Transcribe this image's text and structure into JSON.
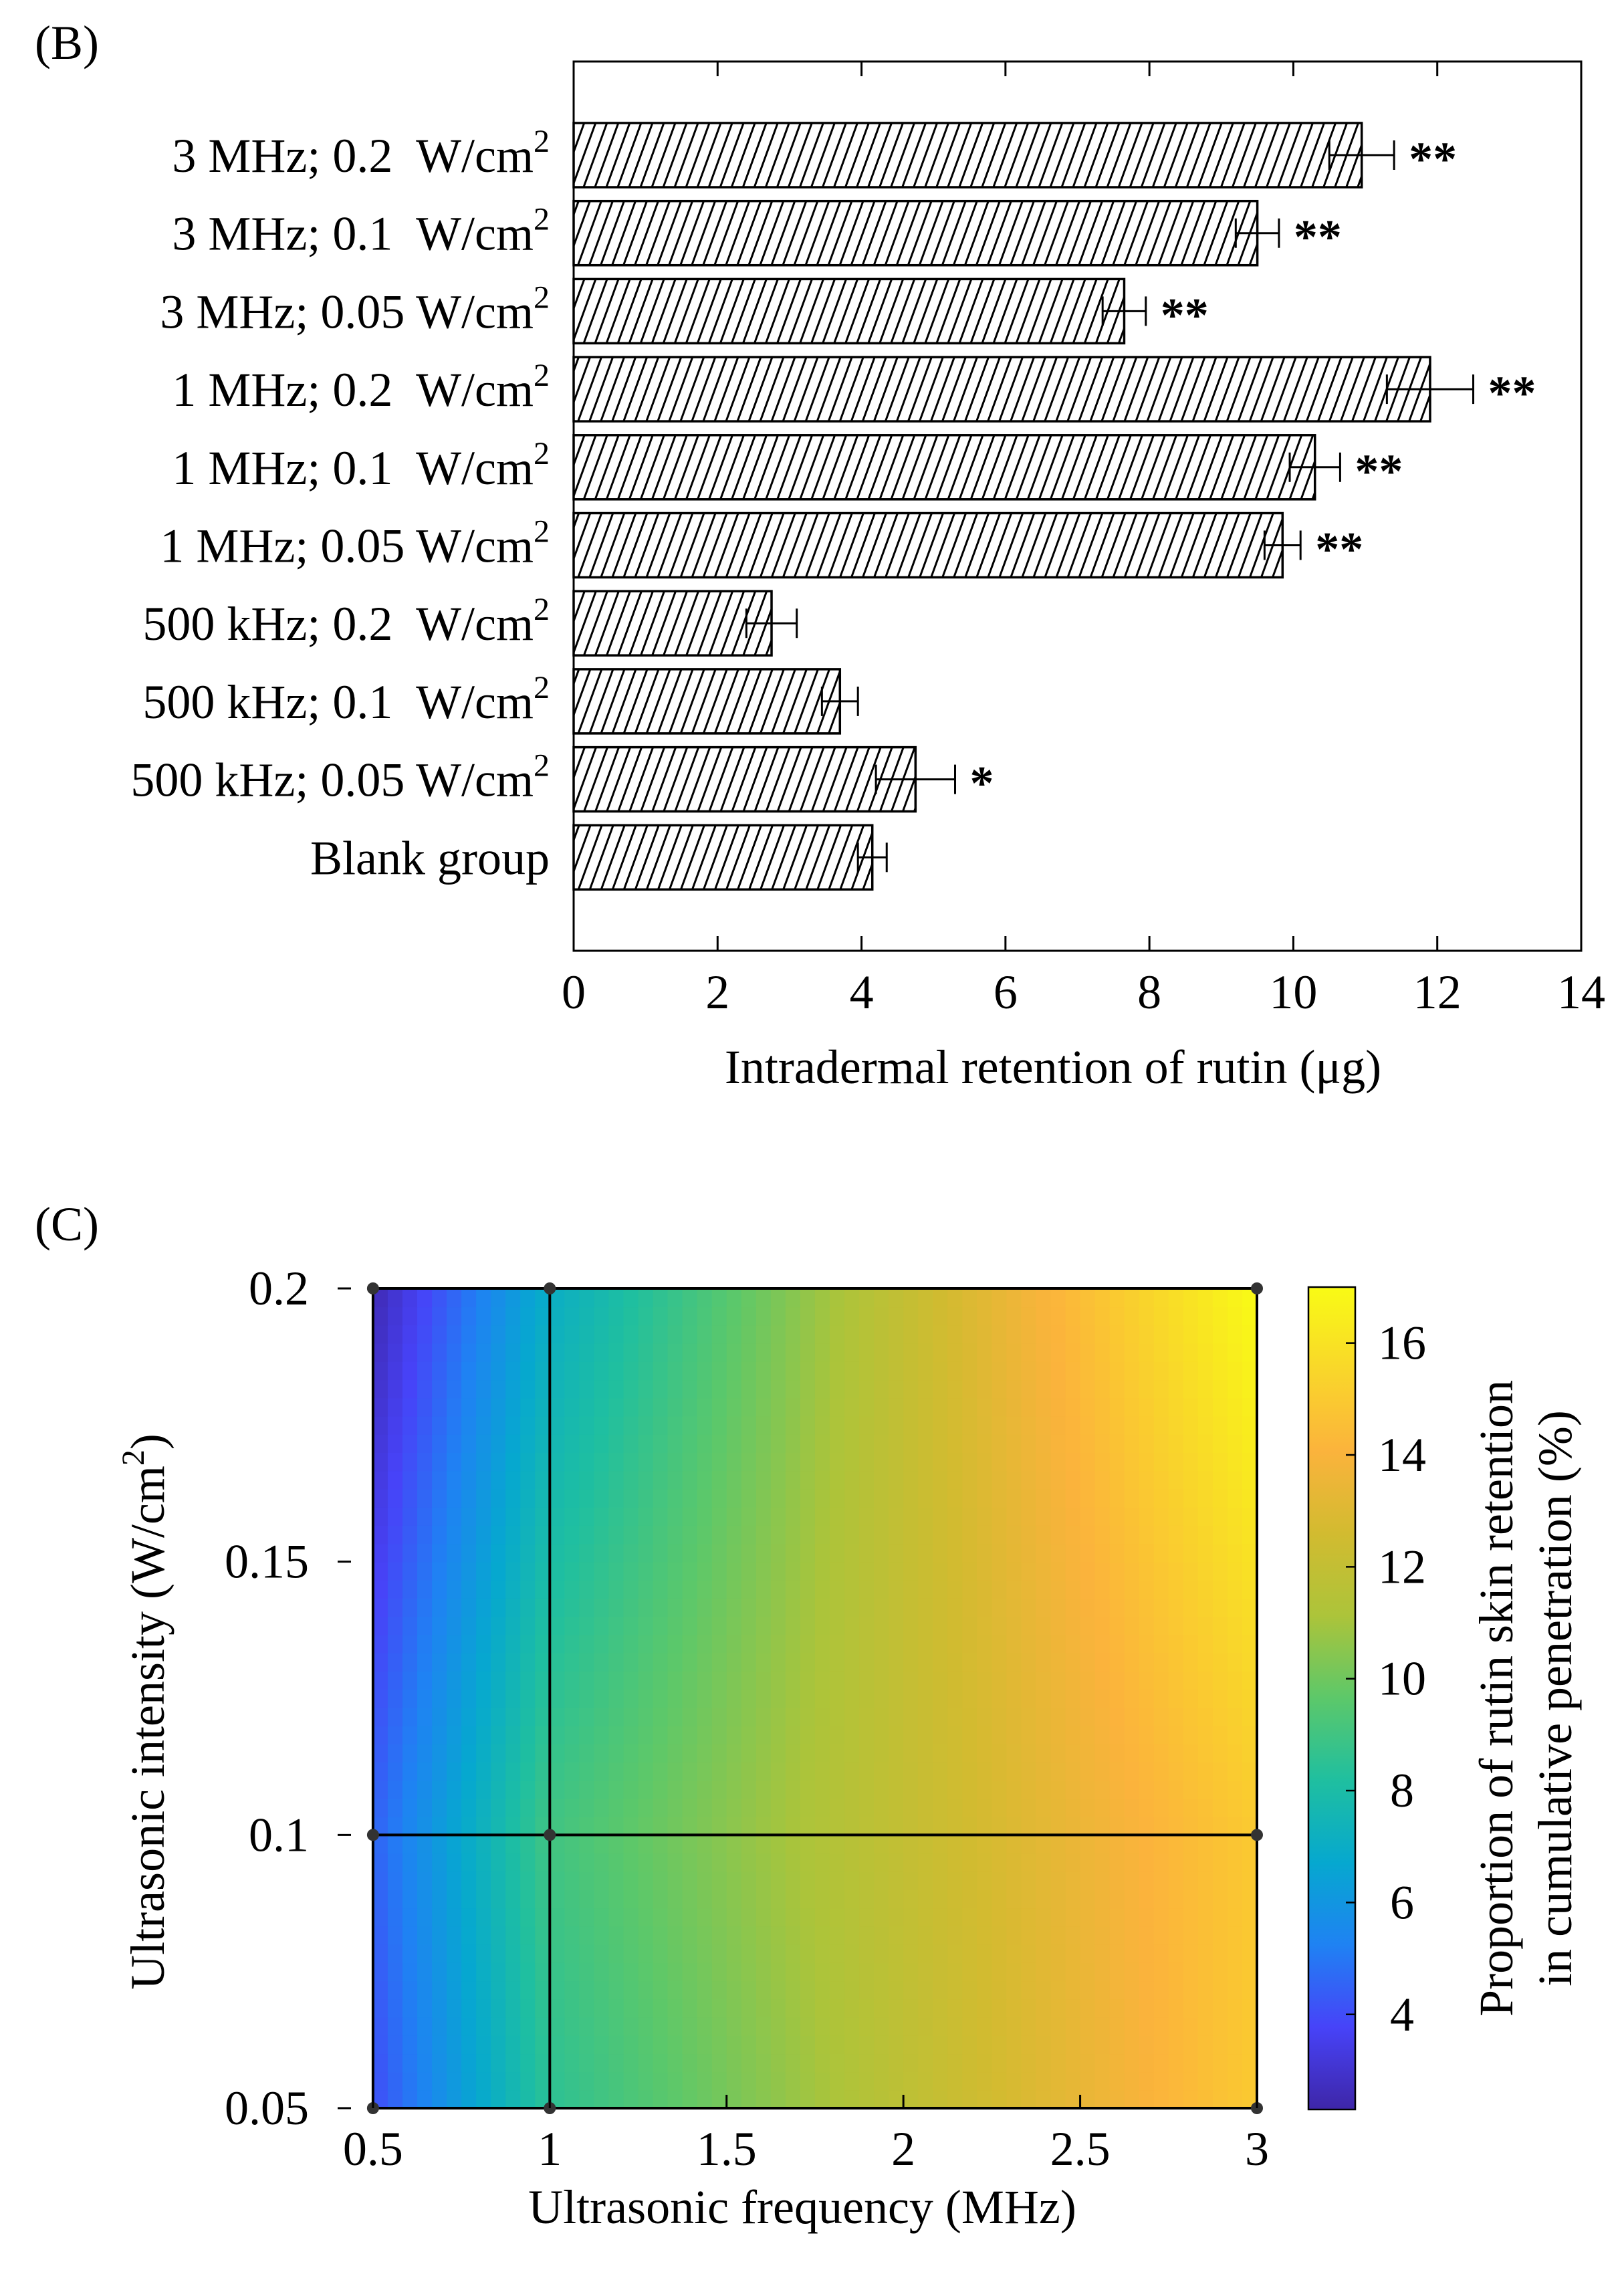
{
  "panel_b": {
    "label": "(B)",
    "chart_data": {
      "type": "bar",
      "orientation": "horizontal",
      "categories": [
        {
          "pre": "3 MHz; 0.2  W/cm",
          "sup": "2"
        },
        {
          "pre": "3 MHz; 0.1  W/cm",
          "sup": "2"
        },
        {
          "pre": "3 MHz; 0.05 W/cm",
          "sup": "2"
        },
        {
          "pre": "1 MHz; 0.2  W/cm",
          "sup": "2"
        },
        {
          "pre": "1 MHz; 0.1  W/cm",
          "sup": "2"
        },
        {
          "pre": "1 MHz; 0.05 W/cm",
          "sup": "2"
        },
        {
          "pre": "500 kHz; 0.2  W/cm",
          "sup": "2"
        },
        {
          "pre": "500 kHz; 0.1  W/cm",
          "sup": "2"
        },
        {
          "pre": "500 kHz; 0.05 W/cm",
          "sup": "2"
        },
        {
          "pre": "Blank group",
          "sup": ""
        }
      ],
      "values": [
        10.95,
        9.5,
        7.65,
        11.9,
        10.3,
        9.85,
        2.75,
        3.7,
        4.75,
        4.15
      ],
      "errors": [
        0.45,
        0.3,
        0.3,
        0.6,
        0.35,
        0.25,
        0.35,
        0.25,
        0.55,
        0.2
      ],
      "significance": [
        "**",
        "**",
        "**",
        "**",
        "**",
        "**",
        "",
        "",
        "*",
        ""
      ],
      "xlabel": "Intradermal retention of rutin (μg)",
      "xlim": [
        0,
        14
      ],
      "xticks": [
        0,
        2,
        4,
        6,
        8,
        10,
        12,
        14
      ],
      "grid": false
    }
  },
  "panel_c": {
    "label": "(C)",
    "chart_data": {
      "type": "heatmap",
      "x": [
        0.5,
        1,
        3
      ],
      "y": [
        0.05,
        0.1,
        0.2
      ],
      "z": [
        [
          4.0,
          8.5,
          15.0
        ],
        [
          4.5,
          9.0,
          15.0
        ],
        [
          2.5,
          7.0,
          17.0
        ]
      ],
      "xlabel": "Ultrasonic frequency (MHz)",
      "ylabel_pre": "Ultrasonic intensity (W/cm",
      "ylabel_sup": "2",
      "ylabel_post": ")",
      "xlim": [
        0.4,
        3
      ],
      "ylim": [
        0.05,
        0.2
      ],
      "xticks": [
        "0.5",
        "1",
        "1.5",
        "2",
        "2.5",
        "3"
      ],
      "yticks": [
        "0.05",
        "0.1",
        "0.15",
        "0.2"
      ],
      "colorbar": {
        "range": [
          2.3,
          17
        ],
        "ticks": [
          4,
          6,
          8,
          10,
          12,
          14,
          16
        ],
        "label_line1": "Proportion of rutin skin retention",
        "label_line2": "in cumulative penetration (%)",
        "colormap": "parula"
      },
      "colors": {
        "stops": [
          "#3e26a8",
          "#4743f8",
          "#1f82f3",
          "#06a8cf",
          "#1fbfa0",
          "#5cc86a",
          "#acc43a",
          "#d2bb30",
          "#fbb33c",
          "#f9d72a",
          "#f9fb15"
        ]
      }
    }
  }
}
